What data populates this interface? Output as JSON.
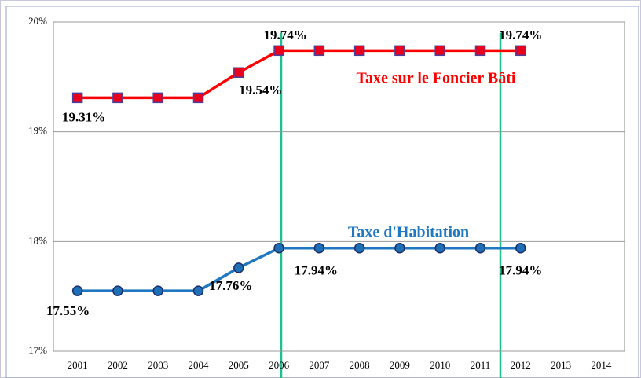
{
  "chart_data": {
    "type": "line",
    "categories": [
      "2001",
      "2002",
      "2003",
      "2004",
      "2005",
      "2006",
      "2007",
      "2008",
      "2009",
      "2010",
      "2011",
      "2012",
      "2013",
      "2014"
    ],
    "series": [
      {
        "name": "Taxe sur le Foncier Bâti",
        "color": "#ff0000",
        "marker_color": "#e8001c",
        "marker_edge": "#4b3fa0",
        "marker": "square",
        "values": [
          19.31,
          19.31,
          19.31,
          19.31,
          19.54,
          19.74,
          19.74,
          19.74,
          19.74,
          19.74,
          19.74,
          19.74,
          null,
          null
        ],
        "value_labels": [
          "19.31%",
          null,
          null,
          null,
          "19.54%",
          "19.74%",
          null,
          null,
          null,
          null,
          null,
          "19.74%",
          null,
          null
        ]
      },
      {
        "name": "Taxe d'Habitation",
        "color": "#1f78c1",
        "marker_color": "#1f6fb4",
        "marker_edge": "#1a2e6e",
        "marker": "circle",
        "values": [
          17.55,
          17.55,
          17.55,
          17.55,
          17.76,
          17.94,
          17.94,
          17.94,
          17.94,
          17.94,
          17.94,
          17.94,
          null,
          null
        ],
        "value_labels": [
          "17.55%",
          null,
          null,
          null,
          "17.76%",
          null,
          "17.94%",
          null,
          null,
          null,
          null,
          "17.94%",
          null,
          null
        ]
      }
    ],
    "ylim": [
      17,
      20
    ],
    "yticks": [
      {
        "value": 17,
        "label": "17%"
      },
      {
        "value": 18,
        "label": "18%"
      },
      {
        "value": 19,
        "label": "19%"
      },
      {
        "value": 20,
        "label": "20%"
      }
    ],
    "grid": true
  }
}
